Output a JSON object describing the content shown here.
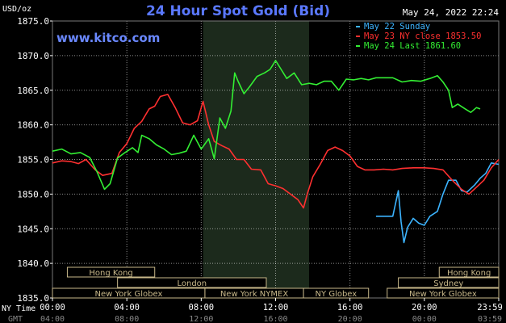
{
  "header": {
    "title": "24 Hour Spot Gold (Bid)",
    "timestamp": "May 24, 2022 22:24",
    "site": "www.kitco.com",
    "unit_label": "USD/oz"
  },
  "legend": [
    {
      "text": "May 22 Sunday",
      "color": "#3cb4ff"
    },
    {
      "text": "May 23 NY close 1853.50",
      "color": "#ff3030"
    },
    {
      "text": "May 24 Last 1861.60",
      "color": "#33ee33"
    }
  ],
  "colors": {
    "background": "#000000",
    "grid": "#ffffff",
    "shade": "#1c2a1c",
    "title": "#5a78ff",
    "site": "#6a88ff",
    "text": "#ffffff",
    "market_fill": "#c8b88a",
    "sunday": "#3cb4ff",
    "prev": "#ff3030",
    "today": "#33ee33"
  },
  "chart_data": {
    "type": "line",
    "ylim": [
      1835,
      1875
    ],
    "y_ticks": [
      "1875.0",
      "1870.0",
      "1865.0",
      "1860.0",
      "1855.0",
      "1850.0",
      "1845.0",
      "1840.0",
      "1835.0"
    ],
    "xlim": [
      0,
      24
    ],
    "shaded_hours": [
      8.1,
      13.8
    ],
    "x_ticks_ny": [
      {
        "h": 0,
        "label": "00:00"
      },
      {
        "h": 4,
        "label": "04:00"
      },
      {
        "h": 8,
        "label": "08:00"
      },
      {
        "h": 12,
        "label": "12:00"
      },
      {
        "h": 16,
        "label": "16:00"
      },
      {
        "h": 20,
        "label": "20:00"
      },
      {
        "h": 24,
        "label": "23:59"
      }
    ],
    "x_ticks_gmt": [
      {
        "h": 0,
        "label": "04:00"
      },
      {
        "h": 4,
        "label": "08:00"
      },
      {
        "h": 8,
        "label": "12:00"
      },
      {
        "h": 12,
        "label": "16:00"
      },
      {
        "h": 16,
        "label": "20:00"
      },
      {
        "h": 20,
        "label": "00:00"
      },
      {
        "h": 24,
        "label": "03:59"
      }
    ],
    "axis_row_labels": {
      "ny": "NY Time",
      "gmt": "GMT"
    },
    "markets": [
      {
        "name": "Hong Kong",
        "row": 0,
        "start": 0.8,
        "end": 5.5
      },
      {
        "name": "Hong Kong",
        "row": 0,
        "start": 20.8,
        "end": 24.0
      },
      {
        "name": "London",
        "row": 1,
        "start": 3.5,
        "end": 11.5
      },
      {
        "name": "Sydney",
        "row": 1,
        "start": 18.6,
        "end": 24.0
      },
      {
        "name": "New York Globex",
        "row": 2,
        "start": 0.0,
        "end": 8.2
      },
      {
        "name": "New York NYMEX",
        "row": 2,
        "start": 8.2,
        "end": 13.5
      },
      {
        "name": "NY Globex",
        "row": 2,
        "start": 13.5,
        "end": 17.0
      },
      {
        "name": "New York Globex",
        "row": 2,
        "start": 18.0,
        "end": 24.0
      }
    ],
    "series": [
      {
        "name": "May 22 Sunday",
        "color": "#3cb4ff",
        "points": [
          [
            17.4,
            1846.8
          ],
          [
            18.3,
            1846.8
          ],
          [
            18.6,
            1850.5
          ],
          [
            18.75,
            1846
          ],
          [
            18.9,
            1843
          ],
          [
            19.1,
            1845.2
          ],
          [
            19.4,
            1846.5
          ],
          [
            19.7,
            1845.8
          ],
          [
            20.0,
            1845.5
          ],
          [
            20.3,
            1846.8
          ],
          [
            20.7,
            1847.5
          ],
          [
            21.0,
            1850
          ],
          [
            21.3,
            1852
          ],
          [
            21.7,
            1852
          ],
          [
            22.0,
            1850.5
          ],
          [
            22.3,
            1850.3
          ],
          [
            22.7,
            1851.3
          ],
          [
            23.0,
            1852.3
          ],
          [
            23.3,
            1853
          ],
          [
            23.6,
            1854.5
          ],
          [
            24.0,
            1854.3
          ]
        ]
      },
      {
        "name": "May 23 NY close 1853.50",
        "color": "#ff3030",
        "points": [
          [
            0,
            1854.5
          ],
          [
            0.5,
            1854.8
          ],
          [
            1.0,
            1854.7
          ],
          [
            1.4,
            1854.4
          ],
          [
            1.8,
            1855.0
          ],
          [
            2.3,
            1853.5
          ],
          [
            2.7,
            1852.7
          ],
          [
            3.2,
            1853.0
          ],
          [
            3.6,
            1856.0
          ],
          [
            4.0,
            1857.3
          ],
          [
            4.4,
            1859.5
          ],
          [
            4.8,
            1860.5
          ],
          [
            5.2,
            1862.3
          ],
          [
            5.5,
            1862.7
          ],
          [
            5.8,
            1864.1
          ],
          [
            6.2,
            1864.4
          ],
          [
            6.6,
            1862.5
          ],
          [
            7.0,
            1860.3
          ],
          [
            7.4,
            1860.0
          ],
          [
            7.8,
            1860.6
          ],
          [
            8.1,
            1863.4
          ],
          [
            8.4,
            1860.0
          ],
          [
            8.7,
            1857.6
          ],
          [
            9.1,
            1857.0
          ],
          [
            9.5,
            1856.5
          ],
          [
            9.9,
            1855.0
          ],
          [
            10.3,
            1855.0
          ],
          [
            10.7,
            1853.6
          ],
          [
            11.2,
            1853.5
          ],
          [
            11.6,
            1851.5
          ],
          [
            12.0,
            1851.2
          ],
          [
            12.4,
            1850.8
          ],
          [
            12.8,
            1850.0
          ],
          [
            13.2,
            1849.2
          ],
          [
            13.5,
            1848.0
          ],
          [
            13.7,
            1850.0
          ],
          [
            14.0,
            1852.5
          ],
          [
            14.4,
            1854.3
          ],
          [
            14.8,
            1856.3
          ],
          [
            15.2,
            1856.8
          ],
          [
            15.6,
            1856.3
          ],
          [
            16.0,
            1855.5
          ],
          [
            16.4,
            1854.0
          ],
          [
            16.8,
            1853.5
          ],
          [
            17.3,
            1853.5
          ],
          [
            17.8,
            1853.6
          ],
          [
            18.3,
            1853.5
          ],
          [
            18.8,
            1853.7
          ],
          [
            19.4,
            1853.8
          ],
          [
            20.0,
            1853.8
          ],
          [
            20.5,
            1853.7
          ],
          [
            21.0,
            1853.5
          ],
          [
            21.5,
            1852.0
          ],
          [
            22.0,
            1850.7
          ],
          [
            22.4,
            1850.0
          ],
          [
            22.8,
            1851.0
          ],
          [
            23.2,
            1852.0
          ],
          [
            23.6,
            1853.8
          ],
          [
            24.0,
            1855.0
          ]
        ]
      },
      {
        "name": "May 24 Last 1861.60",
        "color": "#33ee33",
        "points": [
          [
            0,
            1856.2
          ],
          [
            0.5,
            1856.5
          ],
          [
            1.0,
            1855.8
          ],
          [
            1.5,
            1856.0
          ],
          [
            2.0,
            1855.3
          ],
          [
            2.4,
            1853.2
          ],
          [
            2.8,
            1850.7
          ],
          [
            3.1,
            1851.5
          ],
          [
            3.5,
            1855.2
          ],
          [
            3.9,
            1856.0
          ],
          [
            4.3,
            1856.7
          ],
          [
            4.6,
            1856.0
          ],
          [
            4.8,
            1858.5
          ],
          [
            5.2,
            1858.0
          ],
          [
            5.6,
            1857.1
          ],
          [
            6.0,
            1856.5
          ],
          [
            6.4,
            1855.7
          ],
          [
            6.8,
            1855.9
          ],
          [
            7.2,
            1856.2
          ],
          [
            7.6,
            1858.5
          ],
          [
            8.0,
            1856.5
          ],
          [
            8.4,
            1858.0
          ],
          [
            8.7,
            1855.1
          ],
          [
            9.0,
            1861.0
          ],
          [
            9.3,
            1859.5
          ],
          [
            9.6,
            1862.0
          ],
          [
            9.8,
            1867.5
          ],
          [
            10.0,
            1866.2
          ],
          [
            10.3,
            1864.5
          ],
          [
            10.6,
            1865.5
          ],
          [
            11.0,
            1867.0
          ],
          [
            11.4,
            1867.5
          ],
          [
            11.7,
            1868.0
          ],
          [
            12.0,
            1869.3
          ],
          [
            12.3,
            1868.0
          ],
          [
            12.6,
            1866.7
          ],
          [
            13.0,
            1867.5
          ],
          [
            13.4,
            1865.8
          ],
          [
            13.8,
            1866.0
          ],
          [
            14.2,
            1865.8
          ],
          [
            14.6,
            1866.3
          ],
          [
            15.0,
            1866.3
          ],
          [
            15.4,
            1865.0
          ],
          [
            15.8,
            1866.6
          ],
          [
            16.2,
            1866.5
          ],
          [
            16.6,
            1866.7
          ],
          [
            17.0,
            1866.5
          ],
          [
            17.4,
            1866.8
          ],
          [
            17.9,
            1866.8
          ],
          [
            18.3,
            1866.8
          ],
          [
            18.8,
            1866.2
          ],
          [
            19.3,
            1866.4
          ],
          [
            19.8,
            1866.3
          ],
          [
            20.3,
            1866.7
          ],
          [
            20.7,
            1867.1
          ],
          [
            21.0,
            1866.2
          ],
          [
            21.3,
            1865.0
          ],
          [
            21.5,
            1862.5
          ],
          [
            21.8,
            1863.0
          ],
          [
            22.2,
            1862.3
          ],
          [
            22.5,
            1861.8
          ],
          [
            22.8,
            1862.5
          ],
          [
            23.0,
            1862.3
          ]
        ]
      }
    ]
  }
}
